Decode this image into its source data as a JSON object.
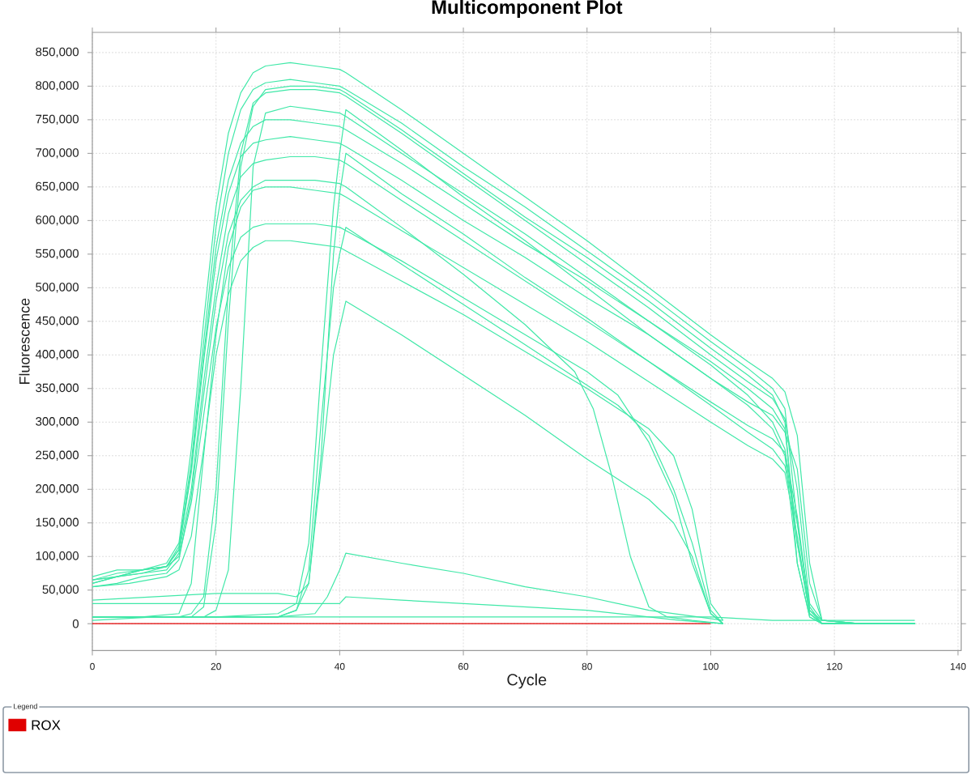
{
  "chart_data": {
    "type": "line",
    "title": "Multicomponent Plot",
    "xlabel": "Cycle",
    "ylabel": "Fluorescence",
    "legend_title": "Legend",
    "legend": "bottom",
    "grid": true,
    "xlim": [
      0,
      140.5
    ],
    "ylim": [
      -40000,
      880000
    ],
    "xticks": [
      0,
      20,
      40,
      60,
      80,
      100,
      120,
      140
    ],
    "yticks": [
      0,
      {
        "value": 50000,
        "label": "50,000"
      },
      {
        "value": 100000,
        "label": "100,000"
      },
      {
        "value": 150000,
        "label": "150,000"
      },
      {
        "value": 200000,
        "label": "200,000"
      },
      {
        "value": 250000,
        "label": "250,000"
      },
      {
        "value": 300000,
        "label": "300,000"
      },
      {
        "value": 350000,
        "label": "350,000"
      },
      {
        "value": 400000,
        "label": "400,000"
      },
      {
        "value": 450000,
        "label": "450,000"
      },
      {
        "value": 500000,
        "label": "500,000"
      },
      {
        "value": 550000,
        "label": "550,000"
      },
      {
        "value": 600000,
        "label": "600,000"
      },
      {
        "value": 650000,
        "label": "650,000"
      },
      {
        "value": 700000,
        "label": "700,000"
      },
      {
        "value": 750000,
        "label": "750,000"
      },
      {
        "value": 800000,
        "label": "800,000"
      },
      {
        "value": 850000,
        "label": "850,000"
      }
    ],
    "series": [
      {
        "name": "ROX",
        "color": "#e00000",
        "x": [
          0,
          20,
          40,
          60,
          80,
          100
        ],
        "values": [
          0,
          0,
          0,
          0,
          0,
          0
        ]
      },
      {
        "color": "#40e8a8",
        "x": [
          0,
          4,
          8,
          12,
          14,
          16,
          18,
          20,
          22,
          24,
          26,
          28,
          32,
          36,
          40,
          41,
          50,
          60,
          70,
          80,
          90,
          100,
          106,
          110,
          112,
          114,
          116,
          118,
          124,
          133
        ],
        "values": [
          70000,
          80000,
          80000,
          90000,
          120000,
          260000,
          450000,
          620000,
          730000,
          790000,
          820000,
          830000,
          835000,
          830000,
          825000,
          820000,
          765000,
          700000,
          635000,
          570000,
          500000,
          430000,
          390000,
          365000,
          345000,
          280000,
          90000,
          5000,
          0,
          0
        ]
      },
      {
        "color": "#40e8a8",
        "x": [
          0,
          4,
          8,
          12,
          14,
          16,
          18,
          20,
          22,
          24,
          26,
          28,
          32,
          36,
          40,
          41,
          50,
          60,
          70,
          80,
          90,
          100,
          106,
          110,
          112,
          114,
          116,
          118,
          124,
          133
        ],
        "values": [
          65000,
          75000,
          80000,
          85000,
          115000,
          240000,
          420000,
          590000,
          700000,
          765000,
          795000,
          805000,
          810000,
          805000,
          800000,
          795000,
          745000,
          680000,
          620000,
          555000,
          490000,
          420000,
          380000,
          350000,
          320000,
          150000,
          20000,
          5000,
          0,
          0
        ]
      },
      {
        "color": "#40e8a8",
        "x": [
          0,
          8,
          14,
          16,
          18,
          20,
          22,
          24,
          26,
          28,
          32,
          36,
          40,
          41,
          50,
          60,
          70,
          80,
          90,
          100,
          106,
          110,
          112,
          114,
          116,
          118,
          124,
          133
        ],
        "values": [
          10000,
          10000,
          10000,
          10000,
          25000,
          150000,
          450000,
          680000,
          770000,
          795000,
          800000,
          800000,
          795000,
          790000,
          735000,
          670000,
          605000,
          545000,
          480000,
          410000,
          370000,
          340000,
          300000,
          90000,
          10000,
          0,
          0,
          0
        ]
      },
      {
        "color": "#40e8a8",
        "x": [
          0,
          8,
          14,
          16,
          18,
          20,
          22,
          24,
          26,
          28,
          32,
          36,
          40,
          41,
          50,
          60,
          70,
          80,
          90,
          100,
          106,
          110,
          112,
          114,
          116,
          118,
          124,
          133
        ],
        "values": [
          10000,
          10000,
          10000,
          15000,
          40000,
          200000,
          500000,
          700000,
          775000,
          790000,
          795000,
          795000,
          790000,
          785000,
          730000,
          665000,
          600000,
          535000,
          470000,
          400000,
          360000,
          335000,
          305000,
          200000,
          30000,
          5000,
          0,
          0
        ]
      },
      {
        "color": "#40e8a8",
        "x": [
          0,
          8,
          14,
          16,
          18,
          20,
          22,
          24,
          26,
          28,
          32,
          36,
          40,
          41,
          50,
          60,
          70,
          80,
          90,
          100,
          106,
          110,
          112,
          114,
          116,
          118,
          124,
          133
        ],
        "values": [
          10000,
          10000,
          10000,
          10000,
          10000,
          20000,
          80000,
          350000,
          680000,
          760000,
          770000,
          765000,
          760000,
          755000,
          700000,
          640000,
          580000,
          515000,
          450000,
          390000,
          350000,
          320000,
          290000,
          120000,
          15000,
          0,
          0,
          0
        ]
      },
      {
        "color": "#40e8a8",
        "x": [
          0,
          10,
          20,
          30,
          33,
          35,
          37,
          39,
          40,
          41,
          50,
          60,
          70,
          80,
          90,
          100,
          106,
          110,
          112,
          114,
          116,
          118,
          124,
          133
        ],
        "values": [
          10000,
          10000,
          10000,
          15000,
          30000,
          120000,
          380000,
          620000,
          700000,
          765000,
          705000,
          635000,
          570000,
          500000,
          430000,
          365000,
          330000,
          310000,
          285000,
          230000,
          60000,
          5000,
          0,
          0
        ]
      },
      {
        "color": "#40e8a8",
        "x": [
          0,
          4,
          8,
          12,
          14,
          16,
          18,
          20,
          22,
          24,
          26,
          28,
          32,
          36,
          40,
          41,
          50,
          60,
          70,
          80,
          90,
          100,
          106,
          110,
          112,
          114,
          116,
          118,
          124,
          133
        ],
        "values": [
          60000,
          70000,
          75000,
          85000,
          110000,
          230000,
          400000,
          560000,
          660000,
          715000,
          740000,
          750000,
          750000,
          745000,
          740000,
          735000,
          685000,
          625000,
          565000,
          510000,
          450000,
          385000,
          340000,
          300000,
          260000,
          120000,
          15000,
          0,
          0,
          0
        ]
      },
      {
        "color": "#40e8a8",
        "x": [
          0,
          4,
          8,
          12,
          14,
          16,
          18,
          20,
          22,
          24,
          26,
          28,
          32,
          36,
          40,
          41,
          50,
          60,
          70,
          80,
          90,
          100,
          106,
          110,
          112,
          114,
          116,
          118,
          124,
          133
        ],
        "values": [
          65000,
          70000,
          80000,
          85000,
          110000,
          225000,
          390000,
          540000,
          640000,
          695000,
          715000,
          720000,
          725000,
          720000,
          715000,
          710000,
          660000,
          600000,
          545000,
          485000,
          430000,
          365000,
          325000,
          290000,
          250000,
          90000,
          10000,
          0,
          0,
          0
        ]
      },
      {
        "color": "#40e8a8",
        "x": [
          0,
          10,
          20,
          30,
          33,
          35,
          37,
          39,
          40,
          41,
          50,
          60,
          70,
          80,
          90,
          100,
          106,
          110,
          112,
          114,
          116,
          118,
          124,
          133
        ],
        "values": [
          35000,
          40000,
          45000,
          45000,
          40000,
          60000,
          250000,
          550000,
          640000,
          700000,
          640000,
          580000,
          515000,
          455000,
          390000,
          330000,
          295000,
          275000,
          255000,
          160000,
          20000,
          0,
          0,
          0
        ]
      },
      {
        "color": "#40e8a8",
        "x": [
          0,
          4,
          8,
          12,
          14,
          16,
          18,
          20,
          22,
          24,
          26,
          28,
          32,
          36,
          40,
          41,
          50,
          60,
          70,
          80,
          90,
          100,
          106,
          110,
          112,
          114,
          116,
          118,
          124,
          133
        ],
        "values": [
          60000,
          70000,
          75000,
          80000,
          105000,
          200000,
          360000,
          500000,
          610000,
          665000,
          685000,
          690000,
          695000,
          695000,
          690000,
          685000,
          630000,
          570000,
          510000,
          450000,
          390000,
          325000,
          285000,
          260000,
          235000,
          150000,
          25000,
          0,
          0,
          0
        ]
      },
      {
        "color": "#40e8a8",
        "x": [
          0,
          8,
          14,
          16,
          18,
          20,
          22,
          24,
          26,
          28,
          32,
          36,
          40,
          41,
          50,
          60,
          70,
          80,
          90,
          100,
          106,
          110,
          112,
          114,
          116,
          118,
          124,
          133
        ],
        "values": [
          10000,
          10000,
          15000,
          60000,
          250000,
          430000,
          560000,
          620000,
          645000,
          650000,
          650000,
          645000,
          640000,
          635000,
          585000,
          530000,
          475000,
          420000,
          360000,
          300000,
          265000,
          245000,
          225000,
          130000,
          15000,
          0,
          0,
          0
        ]
      },
      {
        "color": "#40e8a8",
        "x": [
          0,
          4,
          8,
          12,
          14,
          16,
          18,
          20,
          22,
          24,
          26,
          28,
          32,
          36,
          40,
          41,
          50,
          60,
          70,
          78,
          81,
          84,
          87,
          90,
          93,
          97,
          102
        ],
        "values": [
          55000,
          60000,
          70000,
          75000,
          95000,
          190000,
          340000,
          480000,
          580000,
          630000,
          650000,
          660000,
          660000,
          660000,
          655000,
          650000,
          590000,
          520000,
          445000,
          375000,
          320000,
          220000,
          100000,
          25000,
          10000,
          5000,
          0
        ]
      },
      {
        "color": "#40e8a8",
        "x": [
          0,
          4,
          8,
          12,
          14,
          16,
          18,
          20,
          22,
          24,
          26,
          28,
          32,
          36,
          40,
          41,
          50,
          60,
          70,
          80,
          85,
          90,
          94,
          97,
          100,
          102
        ],
        "values": [
          65000,
          70000,
          80000,
          85000,
          100000,
          180000,
          310000,
          440000,
          530000,
          575000,
          590000,
          595000,
          595000,
          595000,
          590000,
          585000,
          540000,
          485000,
          430000,
          375000,
          340000,
          270000,
          190000,
          90000,
          15000,
          0
        ]
      },
      {
        "color": "#40e8a8",
        "x": [
          0,
          6,
          12,
          14,
          16,
          18,
          20,
          22,
          24,
          26,
          28,
          32,
          36,
          40,
          41,
          50,
          60,
          70,
          80,
          85,
          90,
          94,
          97,
          100,
          102
        ],
        "values": [
          55000,
          60000,
          70000,
          80000,
          130000,
          260000,
          400000,
          490000,
          540000,
          560000,
          570000,
          570000,
          565000,
          560000,
          555000,
          510000,
          460000,
          405000,
          350000,
          320000,
          290000,
          250000,
          170000,
          30000,
          5000
        ]
      },
      {
        "color": "#40e8a8",
        "x": [
          0,
          10,
          20,
          30,
          33,
          35,
          37,
          39,
          40,
          41,
          50,
          60,
          70,
          80,
          85,
          90,
          94,
          97,
          100,
          102
        ],
        "values": [
          10000,
          10000,
          10000,
          10000,
          20000,
          80000,
          300000,
          500000,
          550000,
          590000,
          535000,
          475000,
          415000,
          355000,
          325000,
          280000,
          200000,
          120000,
          20000,
          0
        ]
      },
      {
        "color": "#40e8a8",
        "x": [
          0,
          10,
          20,
          30,
          33,
          35,
          37,
          39,
          40,
          41,
          50,
          60,
          70,
          80,
          85,
          90,
          94,
          97,
          100,
          102
        ],
        "values": [
          5000,
          10000,
          10000,
          10000,
          20000,
          60000,
          230000,
          400000,
          440000,
          480000,
          430000,
          370000,
          310000,
          245000,
          215000,
          185000,
          150000,
          100000,
          15000,
          0
        ]
      },
      {
        "color": "#40e8a8",
        "x": [
          0,
          10,
          20,
          30,
          36,
          38,
          40,
          41,
          50,
          60,
          70,
          80,
          90,
          98,
          102
        ],
        "values": [
          10000,
          10000,
          10000,
          10000,
          15000,
          40000,
          80000,
          105000,
          90000,
          75000,
          55000,
          40000,
          20000,
          10000,
          5000
        ]
      },
      {
        "color": "#40e8a8",
        "x": [
          0,
          10,
          20,
          30,
          38,
          40,
          41,
          50,
          60,
          70,
          80,
          90,
          95,
          102
        ],
        "values": [
          30000,
          30000,
          30000,
          30000,
          30000,
          30000,
          40000,
          35000,
          30000,
          25000,
          20000,
          10000,
          5000,
          0
        ]
      },
      {
        "color": "#40e8a8",
        "x": [
          0,
          20,
          40,
          41,
          60,
          80,
          100,
          110,
          120,
          133
        ],
        "values": [
          10000,
          10000,
          10000,
          10000,
          10000,
          10000,
          10000,
          5000,
          5000,
          5000
        ]
      }
    ]
  }
}
